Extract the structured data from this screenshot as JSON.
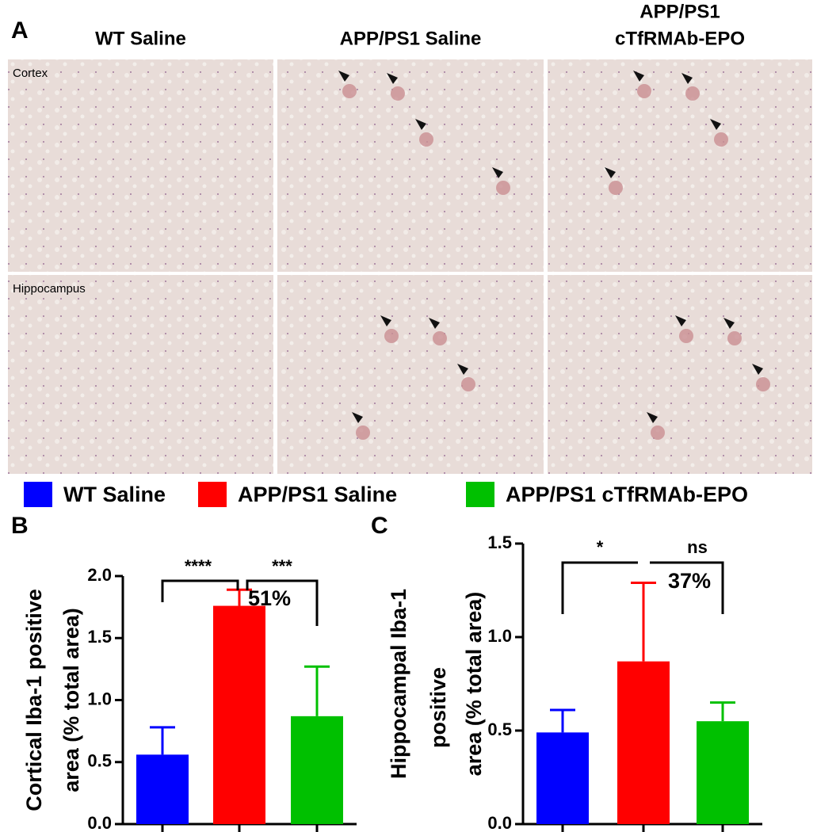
{
  "panels": [
    "A",
    "B",
    "C"
  ],
  "micrographs": {
    "columns": [
      [
        "WT Saline"
      ],
      [
        "APP/PS1 Saline"
      ],
      [
        "APP/PS1",
        "cTfRMAb-EPO"
      ]
    ],
    "rows": [
      "Cortex",
      "Hippocampus"
    ]
  },
  "legend": [
    {
      "name": "WT Saline",
      "color": "#0000ff"
    },
    {
      "name": "APP/PS1 Saline",
      "color": "#ff0000"
    },
    {
      "name": "APP/PS1 cTfRMAb-EPO",
      "color": "#00c000"
    }
  ],
  "chart_data": [
    {
      "type": "bar",
      "ylabel": [
        "Cortical Iba-1 positive",
        "area (% total area)"
      ],
      "categories": [
        null,
        null,
        null
      ],
      "values": [
        0.56,
        1.76,
        0.87
      ],
      "errors": [
        0.22,
        0.13,
        0.4
      ],
      "ylim": [
        0,
        2.0
      ],
      "yticks": [
        {
          "value": 0,
          "label": "0.0"
        },
        0.5,
        {
          "value": 1,
          "label": "1.0"
        },
        1.5,
        {
          "value": 2,
          "label": "2.0"
        }
      ],
      "annotations": [
        "****",
        "***",
        "51%"
      ]
    },
    {
      "type": "bar",
      "ylabel": [
        "Hippocampal Iba-1",
        "positive",
        "area (% total area)"
      ],
      "categories": [
        null,
        null,
        null
      ],
      "values": [
        0.49,
        0.87,
        0.55
      ],
      "errors": [
        0.12,
        0.42,
        0.1
      ],
      "ylim": [
        0,
        1.5
      ],
      "yticks": [
        {
          "value": 0,
          "label": "0.0"
        },
        0.5,
        {
          "value": 1,
          "label": "1.0"
        },
        1.5
      ],
      "annotations": [
        "*",
        "ns",
        "37%"
      ]
    }
  ]
}
